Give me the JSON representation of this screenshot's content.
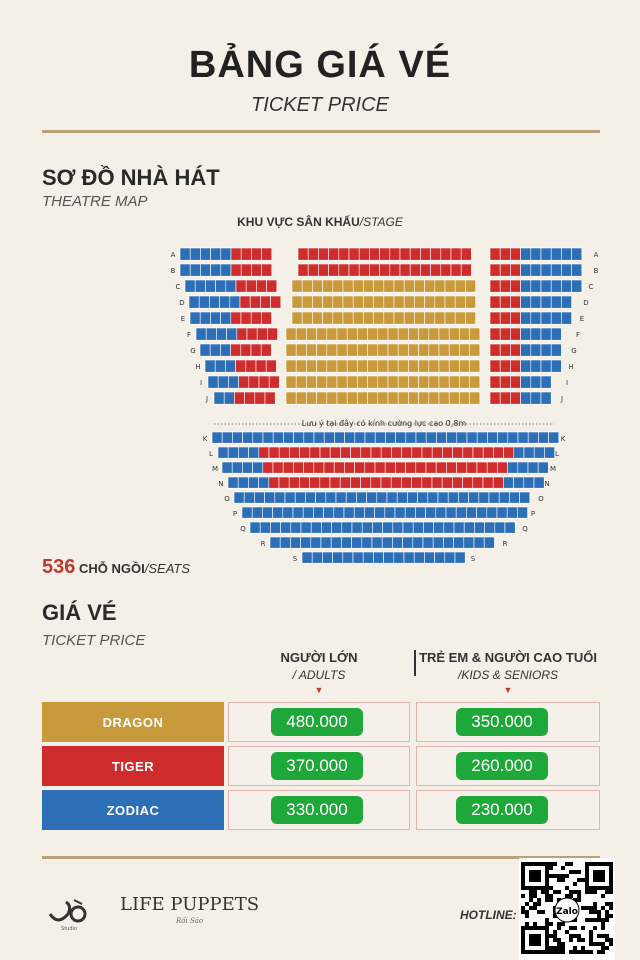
{
  "header": {
    "title": "BẢNG GIÁ VÉ",
    "subtitle": "TICKET PRICE"
  },
  "map_section": {
    "title": "SƠ ĐỒ NHÀ HÁT",
    "subtitle": "THEATRE MAP",
    "stage_label": "KHU VỰC SÂN KHẤU",
    "stage_label_en": "/STAGE",
    "glass_note": "Lưu ý tại đây có kính cường lực cao 0,8m",
    "seat_count": "536",
    "seat_count_label": "CHỖ NGỒI",
    "seat_count_label_en": "/SEATS",
    "rows_upper": [
      "A",
      "B",
      "C",
      "D",
      "E",
      "F",
      "G",
      "H",
      "I",
      "J"
    ],
    "rows_lower": [
      "K",
      "L",
      "M",
      "N",
      "O",
      "P",
      "Q",
      "R",
      "S"
    ]
  },
  "price_section": {
    "title": "GIÁ VÉ",
    "subtitle": "TICKET PRICE",
    "columns": [
      {
        "label": "NGƯỜI LỚN",
        "sub": "/ ADULTS"
      },
      {
        "label": "TRẺ EM & NGƯỜI CAO TUỔI",
        "sub": "/KIDS & SENIORS"
      }
    ],
    "tiers": [
      {
        "name": "DRAGON",
        "color": "#c99a3c",
        "adult": "480.000",
        "kids": "350.000"
      },
      {
        "name": "TIGER",
        "color": "#cf2d2d",
        "adult": "370.000",
        "kids": "260.000"
      },
      {
        "name": "ZODIAC",
        "color": "#2c6fb7",
        "adult": "330.000",
        "kids": "230.000"
      }
    ]
  },
  "footer": {
    "brand": "LIFE PUPPETS",
    "brand_small": "Rối Sáo",
    "jo_small": "Studio",
    "hotline_label": "HOTLINE:",
    "qr_badge": "Zalo"
  },
  "colors": {
    "gold": "#c99a3c",
    "red": "#cf2d2d",
    "blue": "#2c6fb7",
    "price_green": "#1fa83a",
    "rule": "#b8a27a"
  }
}
